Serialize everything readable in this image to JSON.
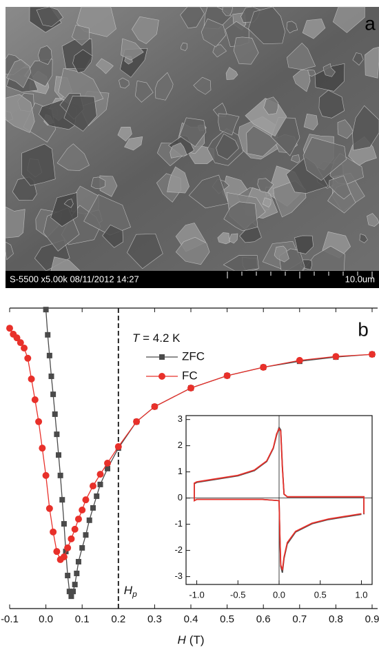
{
  "image_panel": {
    "label": "a",
    "info": "S-5500 x5.00k 08/11/2012 14:27",
    "scale": "10.0um"
  },
  "chart_data": [
    {
      "type": "line",
      "panel_label": "b",
      "annotation": {
        "italic": "T",
        "text": " = 4.2 K"
      },
      "marker_label": {
        "symbol": "H",
        "subscript": "p"
      },
      "marker_line": 0.2,
      "xlabel": {
        "symbol": "H",
        "unit": "(T)"
      },
      "xlim": [
        -0.1,
        0.9
      ],
      "xticks": [
        -0.1,
        {
          "value": 0,
          "label": "0.0"
        },
        0.1,
        0.2,
        0.3,
        0.4,
        0.5,
        0.6,
        0.7,
        0.8,
        0.9
      ],
      "ylim": [
        0,
        100
      ],
      "series": [
        {
          "name": "ZFC",
          "color": "#4a4a4a",
          "marker": "square",
          "x": [
            0.0,
            0.005,
            0.01,
            0.015,
            0.02,
            0.025,
            0.03,
            0.035,
            0.04,
            0.045,
            0.05,
            0.055,
            0.06,
            0.065,
            0.07,
            0.075,
            0.08,
            0.085,
            0.09,
            0.1,
            0.11,
            0.12,
            0.13,
            0.14,
            0.15,
            0.17,
            0.2,
            0.25,
            0.3,
            0.4,
            0.5,
            0.6,
            0.7,
            0.8,
            0.9
          ],
          "values": [
            99.5,
            91.1,
            84.2,
            77.3,
            71.3,
            64.7,
            58.0,
            51.1,
            44.3,
            36.2,
            28.2,
            19.0,
            11.0,
            5.7,
            4.1,
            5.7,
            8.0,
            11.7,
            15.6,
            20.2,
            24.5,
            29.4,
            33.5,
            37.4,
            41.3,
            46.6,
            53.4,
            62.2,
            67.2,
            73.4,
            77.5,
            80.3,
            82.3,
            83.7,
            84.6
          ]
        },
        {
          "name": "FC",
          "color": "#e8302a",
          "marker": "circle",
          "x": [
            -0.1,
            -0.09,
            -0.08,
            -0.07,
            -0.06,
            -0.05,
            -0.04,
            -0.03,
            -0.02,
            -0.01,
            0.0,
            0.01,
            0.02,
            0.03,
            0.04,
            0.05,
            0.06,
            0.07,
            0.08,
            0.09,
            0.1,
            0.11,
            0.13,
            0.15,
            0.17,
            0.2,
            0.25,
            0.3,
            0.4,
            0.5,
            0.6,
            0.7,
            0.8,
            0.9
          ],
          "values": [
            93.3,
            91.3,
            90.1,
            88.5,
            86.7,
            83.3,
            76.4,
            69.5,
            62.2,
            53.4,
            44.3,
            33.3,
            25.5,
            19.0,
            16.3,
            17.2,
            20.2,
            23.2,
            26.4,
            29.8,
            32.8,
            36.2,
            40.8,
            44.7,
            48.4,
            53.9,
            62.2,
            67.2,
            73.4,
            77.5,
            80.3,
            82.6,
            83.9,
            84.6
          ]
        }
      ]
    },
    {
      "type": "line",
      "zero_lines": true,
      "xlim": [
        -1.13,
        1.13
      ],
      "xticks": [
        {
          "value": -1,
          "label": "-1.0"
        },
        -0.5,
        {
          "value": 0,
          "label": "0.0"
        },
        0.5,
        {
          "value": 1,
          "label": "1.0"
        }
      ],
      "ylim": [
        -3.3,
        3.15
      ],
      "yticks": [
        -3,
        -2,
        -1,
        0,
        1,
        2,
        3
      ],
      "series": [
        {
          "name": "ZFC",
          "color": "#4a4a4a",
          "x": [
            1.0,
            0.8,
            0.6,
            0.4,
            0.2,
            0.1,
            0.06,
            0.04,
            0.02,
            0.01,
            0.0,
            -0.2,
            -0.5,
            -0.8,
            -1.0,
            -1.03,
            -1.03,
            -1.0,
            -0.8,
            -0.5,
            -0.3,
            -0.15,
            -0.07,
            -0.03,
            0.0,
            0.02,
            0.04,
            0.06,
            0.1,
            0.3,
            0.6,
            0.9,
            1.0,
            1.03,
            1.03
          ],
          "values": [
            -0.62,
            -0.72,
            -0.82,
            -0.98,
            -1.3,
            -1.75,
            -2.3,
            -2.85,
            -2.6,
            -1.5,
            -0.1,
            -0.05,
            -0.05,
            -0.05,
            -0.05,
            -0.1,
            0.55,
            0.6,
            0.7,
            0.85,
            1.05,
            1.4,
            1.9,
            2.4,
            2.7,
            2.6,
            1.2,
            0.15,
            0.05,
            0.05,
            0.05,
            0.05,
            0.05,
            0.05,
            -0.62
          ]
        },
        {
          "name": "FC",
          "color": "#e8302a",
          "x": [
            1.0,
            0.8,
            0.6,
            0.4,
            0.2,
            0.1,
            0.06,
            0.04,
            0.02,
            0.01,
            0.0,
            -0.2,
            -0.5,
            -0.8,
            -1.0,
            -1.03,
            -1.03,
            -1.0,
            -0.8,
            -0.5,
            -0.3,
            -0.15,
            -0.07,
            -0.03,
            0.0,
            0.02,
            0.04,
            0.06,
            0.1,
            0.3,
            0.6,
            0.9,
            1.0,
            1.03,
            1.03
          ],
          "values": [
            -0.6,
            -0.7,
            -0.8,
            -0.96,
            -1.27,
            -1.7,
            -2.25,
            -2.75,
            -2.55,
            -1.45,
            -0.1,
            -0.05,
            -0.05,
            -0.05,
            -0.05,
            -0.1,
            0.57,
            0.62,
            0.72,
            0.87,
            1.07,
            1.42,
            1.92,
            2.45,
            2.65,
            2.55,
            1.15,
            0.15,
            0.05,
            0.05,
            0.05,
            0.05,
            0.05,
            0.05,
            -0.6
          ]
        }
      ]
    }
  ]
}
